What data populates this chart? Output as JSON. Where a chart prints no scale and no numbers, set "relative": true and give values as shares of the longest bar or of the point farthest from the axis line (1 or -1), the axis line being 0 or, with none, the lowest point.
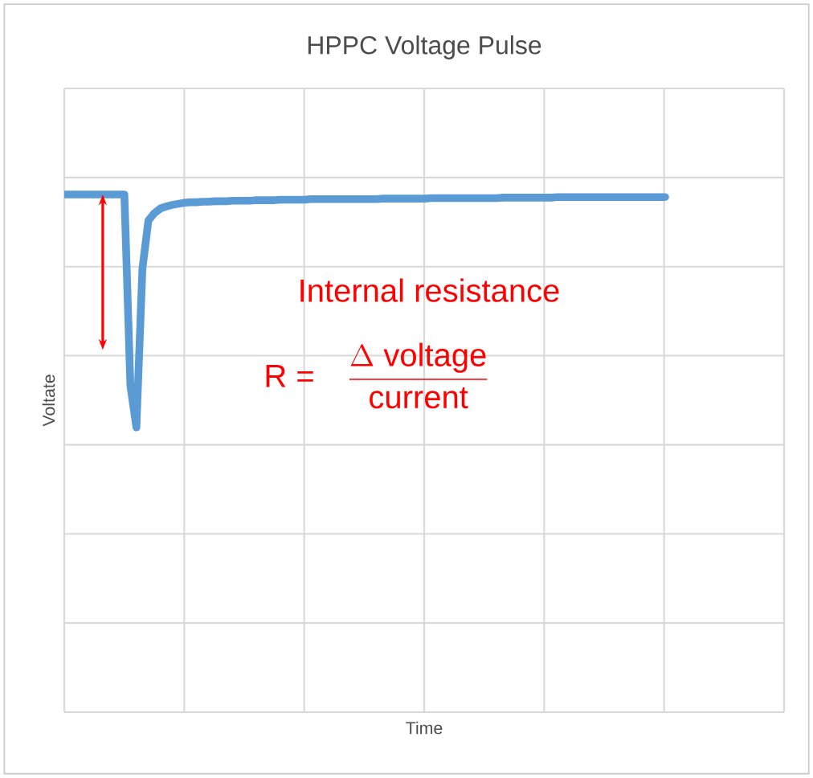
{
  "chart_data": {
    "type": "line",
    "title": "HPPC Voltage Pulse",
    "xlabel": "Time",
    "ylabel": "Voltate",
    "relative": true,
    "grid": true,
    "marker": "none",
    "line_style": "solid",
    "categories": [
      null,
      null,
      null,
      null,
      null,
      null,
      null,
      null,
      null,
      null,
      null,
      null,
      null,
      null,
      null,
      null,
      null,
      null,
      null,
      null,
      null,
      null,
      null,
      null,
      null,
      null,
      null,
      null,
      null,
      null,
      null,
      null,
      null,
      null,
      null,
      null,
      null,
      null,
      null,
      null,
      null,
      null,
      null,
      null,
      null,
      null,
      null,
      null,
      null,
      null,
      null,
      null,
      null,
      null,
      null,
      null,
      null,
      null,
      null,
      null,
      null,
      null,
      null,
      null,
      null,
      null,
      null,
      null,
      null,
      null,
      null,
      null,
      null,
      null,
      null,
      null,
      null,
      null,
      null,
      null,
      null,
      null,
      null,
      null,
      null,
      null,
      null,
      null,
      null,
      null,
      null,
      null,
      null,
      null,
      null,
      null,
      null,
      null,
      null,
      null,
      null
    ],
    "series": [
      {
        "color": "#5b9bd5",
        "values": [
          1,
          1,
          1,
          1,
          1,
          1,
          1,
          1,
          1,
          1,
          1,
          0.631,
          0.55,
          0.856,
          0.95,
          0.964,
          0.973,
          0.977,
          0.98,
          0.982,
          0.984,
          0.985,
          0.985,
          0.986,
          0.986,
          0.987,
          0.987,
          0.987,
          0.988,
          0.988,
          0.988,
          0.988,
          0.989,
          0.989,
          0.989,
          0.989,
          0.99,
          0.99,
          0.99,
          0.99,
          0.99,
          0.991,
          0.991,
          0.991,
          0.991,
          0.991,
          0.991,
          0.991,
          0.991,
          0.991,
          0.991,
          0.991,
          0.991,
          0.992,
          0.992,
          0.992,
          0.992,
          0.992,
          0.992,
          0.992,
          0.992,
          0.993,
          0.993,
          0.993,
          0.993,
          0.993,
          0.993,
          0.993,
          0.993,
          0.993,
          0.993,
          0.993,
          0.993,
          0.994,
          0.994,
          0.994,
          0.994,
          0.994,
          0.994,
          0.994,
          0.994,
          0.994,
          0.995,
          0.995,
          0.995,
          0.995,
          0.995,
          0.995,
          0.995,
          0.995,
          0.995,
          0.995,
          0.995,
          0.995,
          0.995,
          0.995,
          0.995,
          0.995,
          0.995,
          0.995,
          0.995
        ]
      }
    ],
    "annotations": [
      "Internal resistance",
      "\\text{R =}\\quad\\frac{\\Delta\\ \\text{voltage}}{\\text{current}}"
    ]
  }
}
